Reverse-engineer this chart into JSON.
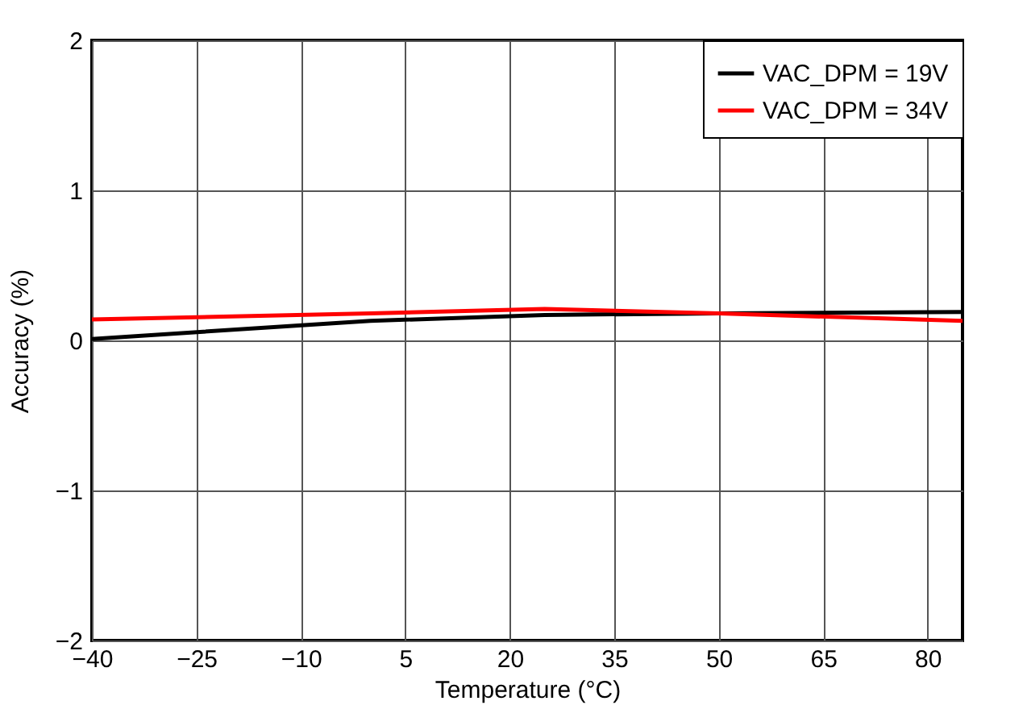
{
  "chart_data": {
    "type": "line",
    "xlabel": "Temperature (°C)",
    "ylabel": "Accuracy (%)",
    "xlim": [
      -40,
      85
    ],
    "xticks": [
      -40,
      -25,
      -10,
      5,
      20,
      35,
      50,
      65,
      80
    ],
    "ylim": [
      -2,
      2
    ],
    "yticks": [
      -2,
      -1,
      0,
      1,
      2
    ],
    "grid": true,
    "legend": "top right",
    "marker": "none",
    "line_style": "solid",
    "series": [
      {
        "name": "VAC_DPM = 19V",
        "color": "#000000",
        "x": [
          -40,
          0,
          25,
          50,
          85
        ],
        "values": [
          0.01,
          0.13,
          0.17,
          0.18,
          0.19
        ]
      },
      {
        "name": "VAC_DPM = 34V",
        "color": "#ff0000",
        "x": [
          -40,
          0,
          25,
          50,
          85
        ],
        "values": [
          0.14,
          0.18,
          0.21,
          0.18,
          0.13
        ]
      }
    ]
  }
}
